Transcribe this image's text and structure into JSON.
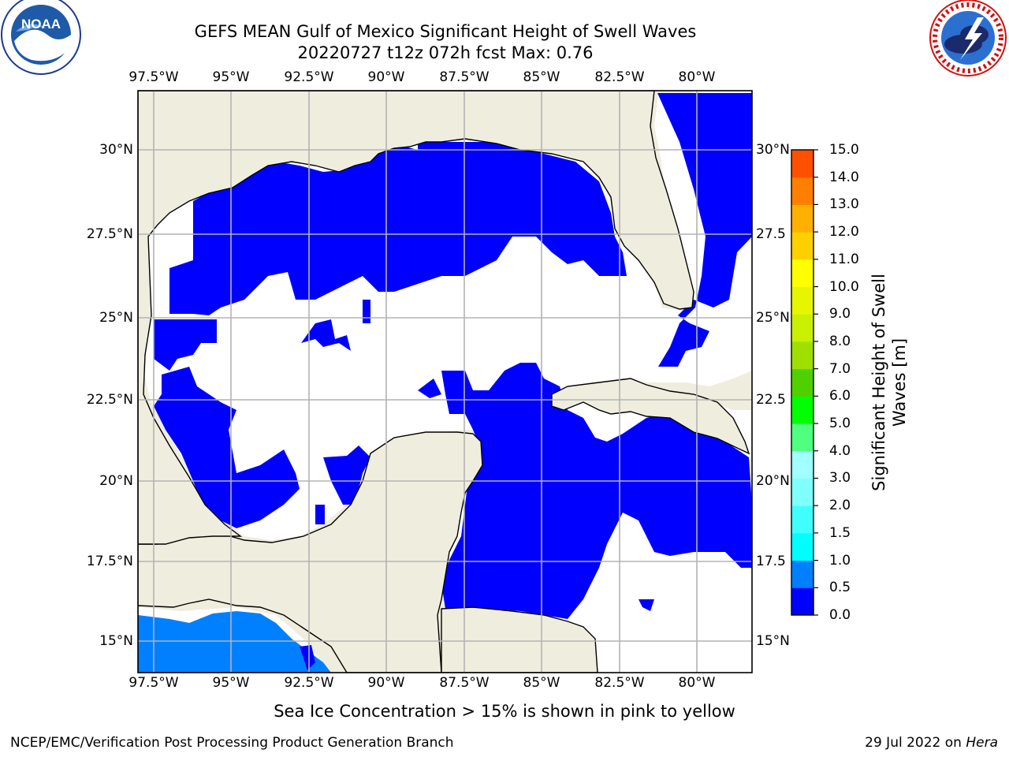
{
  "title_line1": "GEFS MEAN Gulf of Mexico Significant Height of Swell Waves",
  "title_line2": "20220727 t12z 072h fcst   Max: 0.76",
  "logos": {
    "left": {
      "name": "noaa-logo",
      "text": "NOAA",
      "ring_text": "NATIONAL OCEANIC AND ATMOSPHERIC ADMINISTRATION · U.S. DEPARTMENT OF COMMERCE"
    },
    "right": {
      "name": "nws-logo",
      "ring_text": "NATIONAL WEATHER SERVICE"
    }
  },
  "map": {
    "lon_labels": [
      "97.5°W",
      "95°W",
      "92.5°W",
      "90°W",
      "87.5°W",
      "85°W",
      "82.5°W",
      "80°W"
    ],
    "lat_labels": [
      "30°N",
      "27.5°N",
      "25°N",
      "22.5°N",
      "20°N",
      "17.5°N",
      "15°N"
    ],
    "right_lat_labels": [
      "30°N",
      "27.5",
      "25°N",
      "22.5",
      "20°N",
      "17.5",
      "15°N"
    ],
    "colors": {
      "land": "#efedde",
      "ocean_low": "#0000ff",
      "ocean_mid": "#0080ff",
      "no_data": "#ffffff",
      "grid": "#b3b3b3"
    }
  },
  "colorbar": {
    "label": "Significant Height of Swell Waves [m]",
    "ticks": [
      "0.0",
      "0.5",
      "1.0",
      "1.5",
      "2.0",
      "3.0",
      "4.0",
      "5.0",
      "6.0",
      "7.0",
      "8.0",
      "9.0",
      "10.0",
      "11.0",
      "12.0",
      "13.0",
      "14.0",
      "15.0"
    ],
    "colors": [
      "#0000ff",
      "#0080ff",
      "#00ffff",
      "#40ffff",
      "#80ffff",
      "#a0ffff",
      "#50ff80",
      "#00ff00",
      "#50d000",
      "#a0e000",
      "#c8f000",
      "#e6f500",
      "#ffff00",
      "#ffd000",
      "#ffb000",
      "#ff8000",
      "#ff5000",
      "#ff2000",
      "#ff0000"
    ]
  },
  "footer": {
    "note": "Sea Ice Concentration > 15% is shown in pink to yellow",
    "credit": "NCEP/EMC/Verification Post Processing Product Generation Branch",
    "date": "29 Jul 2022 on ",
    "host": "Hera"
  }
}
